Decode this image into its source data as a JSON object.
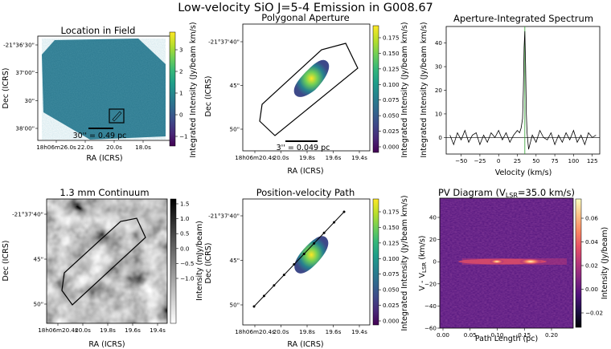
{
  "suptitle": "Low-velocity SiO J=5-4 Emission in G008.67",
  "colors": {
    "viridis": [
      "#440154",
      "#482878",
      "#3e4989",
      "#31688e",
      "#26828e",
      "#1f9e89",
      "#35b779",
      "#6ece58",
      "#b5de2b",
      "#fde725"
    ],
    "magma": [
      "#000004",
      "#1c1044",
      "#4f127b",
      "#812581",
      "#b5367a",
      "#e55064",
      "#fb8761",
      "#fec287",
      "#fcfdbf"
    ],
    "greys": [
      "#ffffff",
      "#000000"
    ],
    "spectrum_line": "#000000",
    "fit_line": "#2ca02c",
    "aperture": "#000000"
  },
  "panels": {
    "location": {
      "title": "Location in Field",
      "xlabel": "RA (ICRS)",
      "ylabel": "Dec (ICRS)",
      "xticks": [
        "18h06m26.0s",
        "22.0s",
        "20.0s",
        "18.0s"
      ],
      "yticks": [
        "-21°36'30\"",
        "37'00\"",
        "30\"",
        "38'00\""
      ],
      "scalebar_label": "30'' = 0.49 pc",
      "colorbar": {
        "label": "Integrated Intensity (Jy/beam km/s)",
        "ticks": [
          "3",
          "2",
          "1",
          "0",
          "−1"
        ]
      }
    },
    "aperture": {
      "title": "Polygonal Aperture",
      "xlabel": "RA (ICRS)",
      "ylabel": "Dec (ICRS)",
      "xticks": [
        "18h06m20.4s",
        "20.0s",
        "19.8s",
        "19.6s",
        "19.4s"
      ],
      "yticks": [
        "-21°37'40\"",
        "45\"",
        "50\""
      ],
      "scalebar_label": "3'' = 0.049 pc",
      "colorbar": {
        "label": "Integrated Intensity (Jy/beam km/s)",
        "ticks": [
          "0.175",
          "0.150",
          "0.125",
          "0.100",
          "0.075",
          "0.050",
          "0.025",
          "0.000"
        ]
      }
    },
    "spectrum": {
      "title": "Aperture-Integrated Spectrum",
      "xlabel": "Velocity (km/s)",
      "ylabel": "Integrated Intensity (Jy/beam km/s)",
      "xticks": [
        "−50",
        "−25",
        "0",
        "25",
        "50",
        "75",
        "100",
        "125"
      ],
      "yticks": [
        "0",
        "10",
        "20",
        "30",
        "40"
      ]
    },
    "continuum": {
      "title": "1.3 mm Continuum",
      "xlabel": "RA (ICRS)",
      "ylabel": "Dec (ICRS)",
      "xticks": [
        "18h06m20.4s",
        "20.0s",
        "19.8s",
        "19.6s",
        "19.4s"
      ],
      "yticks": [
        "-21°37'40\"",
        "45\"",
        "50\""
      ],
      "colorbar": {
        "label": "Intensity (mJy/beam)",
        "ticks": [
          "1.5",
          "1.0",
          "0.5",
          "0.0",
          "−0.5",
          "−1.0"
        ]
      }
    },
    "pvpath": {
      "title": "Position-velocity Path",
      "xlabel": "RA (ICRS)",
      "ylabel": "Dec (ICRS)",
      "xticks": [
        "18h06m20.4s",
        "20.0s",
        "19.8s",
        "19.6s",
        "19.4s"
      ],
      "yticks": [
        "-21°37'40\"",
        "45\"",
        "50\""
      ],
      "colorbar": {
        "label": "Integrated Intensity (Jy/beam km/s)",
        "ticks": [
          "0.175",
          "0.150",
          "0.125",
          "0.100",
          "0.075",
          "0.050",
          "0.025",
          "0.000"
        ]
      }
    },
    "pvdiagram": {
      "title_prefix": "PV Diagram (V",
      "title_sub": "LSR",
      "title_suffix": "=35.0 km/s)",
      "xlabel": "Path Length (pc)",
      "ylabel_main": "V - V",
      "ylabel_sub": "LSR",
      "ylabel_unit": " (km/s)",
      "xticks": [
        "0.00",
        "0.05",
        "0.10",
        "0.15",
        "0.20"
      ],
      "yticks": [
        "40",
        "20",
        "0",
        "−20",
        "−40",
        "−60"
      ],
      "colorbar": {
        "label": "Intensity (Jy/beam)",
        "ticks": [
          "0.06",
          "0.04",
          "0.02",
          "0.00",
          "−0.02"
        ]
      }
    }
  },
  "chart_data": {
    "type": "line",
    "title": "Aperture-Integrated Spectrum",
    "xlabel": "Velocity (km/s)",
    "ylabel": "Integrated Intensity (Jy/beam km/s)",
    "xlim": [
      -70,
      135
    ],
    "ylim": [
      -7,
      47
    ],
    "series": [
      {
        "name": "spectrum",
        "x": [
          -65,
          -60,
          -55,
          -50,
          -45,
          -40,
          -35,
          -30,
          -25,
          -20,
          -15,
          -10,
          -5,
          0,
          5,
          10,
          15,
          20,
          25,
          28,
          30,
          32,
          33,
          34,
          35,
          36,
          37,
          38,
          40,
          45,
          50,
          55,
          60,
          65,
          70,
          75,
          80,
          85,
          90,
          95,
          100,
          105,
          110,
          115,
          120,
          125,
          130
        ],
        "values": [
          1,
          -3,
          2,
          -1,
          3,
          -2,
          1,
          2,
          -3,
          1,
          -2,
          2,
          0,
          3,
          -1,
          2,
          -2,
          1,
          3,
          2,
          4,
          8,
          20,
          38,
          45,
          30,
          10,
          2,
          -5,
          1,
          -2,
          3,
          0,
          -1,
          2,
          -3,
          1,
          -2,
          2,
          -1,
          3,
          -2,
          1,
          -3,
          2,
          0,
          1
        ]
      }
    ],
    "markers": [
      {
        "name": "V_LSR line",
        "x": 35.0
      }
    ]
  }
}
